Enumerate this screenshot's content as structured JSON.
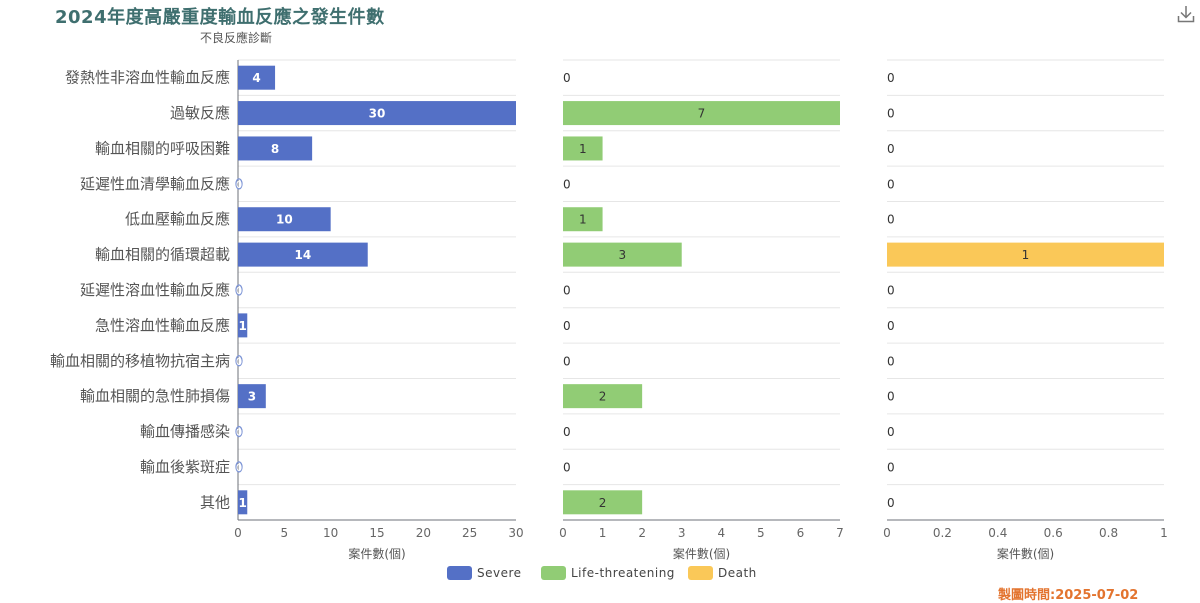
{
  "header": {
    "title": "2024年度高嚴重度輸血反應之發生件數"
  },
  "footer": {
    "timestamp": "製圖時間:2025-07-02"
  },
  "toolbar": {
    "download_icon": "download-icon"
  },
  "chart_data": {
    "type": "bar",
    "orientation": "horizontal",
    "yaxis_title": "不良反應診斷",
    "categories": [
      "發熱性非溶血性輸血反應",
      "過敏反應",
      "輸血相關的呼吸困難",
      "延遲性血清學輸血反應",
      "低血壓輸血反應",
      "輸血相關的循環超載",
      "延遲性溶血性輸血反應",
      "急性溶血性輸血反應",
      "輸血相關的移植物抗宿主病",
      "輸血相關的急性肺損傷",
      "輸血傳播感染",
      "輸血後紫斑症",
      "其他"
    ],
    "panels": [
      {
        "name": "Severe",
        "color": "#5470c6",
        "label_color": "#ffffff",
        "values": [
          4,
          30,
          8,
          0,
          10,
          14,
          0,
          1,
          0,
          3,
          0,
          0,
          1
        ],
        "xlim": [
          0,
          30
        ],
        "ticks": [
          "0",
          "5",
          "10",
          "15",
          "20",
          "25",
          "30"
        ],
        "xlabel": "案件數(個)"
      },
      {
        "name": "Life-threatening",
        "color": "#91cc75",
        "label_color": "#333333",
        "values": [
          0,
          7,
          1,
          0,
          1,
          3,
          0,
          0,
          0,
          2,
          0,
          0,
          2
        ],
        "xlim": [
          0,
          7
        ],
        "ticks": [
          "0",
          "1",
          "2",
          "3",
          "4",
          "5",
          "6",
          "7"
        ],
        "xlabel": "案件數(個)"
      },
      {
        "name": "Death",
        "color": "#fac858",
        "label_color": "#333333",
        "values": [
          0,
          0,
          0,
          0,
          0,
          1,
          0,
          0,
          0,
          0,
          0,
          0,
          0
        ],
        "xlim": [
          0,
          1
        ],
        "ticks": [
          "0",
          "0.2",
          "0.4",
          "0.6",
          "0.8",
          "1"
        ],
        "xlabel": "案件數(個)"
      }
    ],
    "legend": [
      "Severe",
      "Life-threatening",
      "Death"
    ],
    "legend_position": "bottom-center",
    "grid": true
  }
}
